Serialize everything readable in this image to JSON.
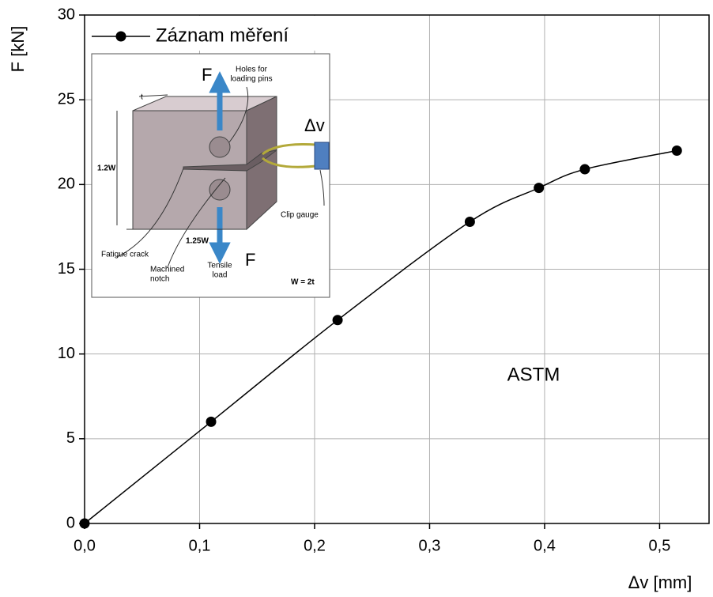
{
  "chart_data": {
    "type": "line",
    "smooth": true,
    "x": [
      0,
      0.11,
      0.22,
      0.335,
      0.395,
      0.435,
      0.515
    ],
    "series": [
      {
        "name": "Záznam měření",
        "color": "#000000",
        "values": [
          0,
          6,
          12,
          17.8,
          19.8,
          20.9,
          22
        ]
      }
    ],
    "xlabel": "Δv [mm]",
    "ylabel": "F [kN]",
    "xlim": [
      0,
      0.543
    ],
    "ylim": [
      0,
      30
    ],
    "xticks": [
      {
        "value": 0,
        "label": "0,0"
      },
      {
        "value": 0.1,
        "label": "0,1"
      },
      {
        "value": 0.2,
        "label": "0,2"
      },
      {
        "value": 0.3,
        "label": "0,3"
      },
      {
        "value": 0.4,
        "label": "0,4"
      },
      {
        "value": 0.5,
        "label": "0,5"
      }
    ],
    "yticks": [
      0,
      5,
      10,
      15,
      20,
      25,
      30
    ],
    "grid": true,
    "legend": "upper left",
    "annotations": [
      "ASTM"
    ],
    "inset": {
      "force_top": "F",
      "holes": [
        "Holes for",
        "loading pins"
      ],
      "t": "t",
      "height": "1.2W",
      "width": "1.25W",
      "crack": "Fatigue crack",
      "notch": [
        "Machined",
        "notch"
      ],
      "load": [
        "Tensile",
        "load"
      ],
      "force_bottom": "F",
      "displacement": "Δv",
      "gauge": "Clip gauge",
      "relation": "W = 2t"
    }
  }
}
